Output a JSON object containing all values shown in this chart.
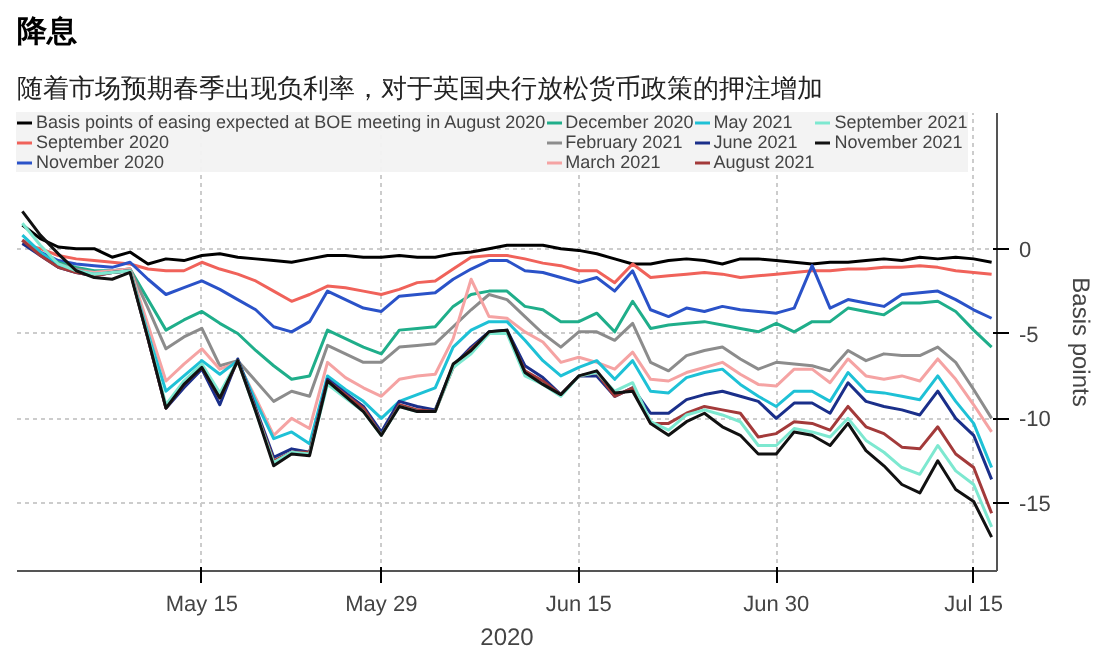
{
  "chart_data": {
    "type": "line",
    "title": "降息",
    "subtitle": "随着市场预期春季出现负利率，对于英国央行放松货币政策的押注增加",
    "xlabel": "2020",
    "ylabel": "Basis points",
    "categories": [
      null,
      null,
      null,
      null,
      null,
      null,
      null,
      null,
      null,
      null,
      "May 15",
      null,
      null,
      null,
      null,
      null,
      null,
      null,
      null,
      null,
      "May 29",
      null,
      null,
      null,
      null,
      null,
      null,
      null,
      null,
      null,
      null,
      "Jun 15",
      null,
      null,
      null,
      null,
      null,
      null,
      null,
      null,
      null,
      null,
      "Jun 30",
      null,
      null,
      null,
      null,
      null,
      null,
      null,
      null,
      null,
      null,
      "Jul 15",
      null
    ],
    "ylim": [
      -19,
      8
    ],
    "yticks": [
      0,
      -5,
      -10,
      -15
    ],
    "grid": true,
    "legend": "top",
    "series": [
      {
        "name": "Basis points of easing expected at BOE meeting in August 2020",
        "color": "#000000",
        "values": [
          1.4,
          0.6,
          0.1,
          0.0,
          0.0,
          -0.5,
          -0.2,
          -0.9,
          -0.6,
          -0.7,
          -0.4,
          -0.3,
          -0.5,
          -0.6,
          -0.7,
          -0.8,
          -0.6,
          -0.4,
          -0.4,
          -0.5,
          -0.5,
          -0.4,
          -0.5,
          -0.5,
          -0.3,
          -0.2,
          0.0,
          0.2,
          0.2,
          0.2,
          0.0,
          -0.1,
          -0.3,
          -0.6,
          -0.9,
          -0.9,
          -0.7,
          -0.6,
          -0.7,
          -0.9,
          -0.6,
          -0.6,
          -0.7,
          -0.8,
          -0.9,
          -0.8,
          -0.8,
          -0.7,
          -0.6,
          -0.7,
          -0.5,
          -0.6,
          -0.5,
          -0.6,
          -0.8
        ]
      },
      {
        "name": "September 2020",
        "color": "#f0625a",
        "values": [
          0.3,
          0.0,
          -0.4,
          -0.6,
          -0.7,
          -0.8,
          -0.9,
          -1.2,
          -1.3,
          -1.3,
          -0.8,
          -1.2,
          -1.5,
          -1.9,
          -2.5,
          -3.1,
          -2.7,
          -2.2,
          -2.3,
          -2.5,
          -2.7,
          -2.4,
          -2.0,
          -1.9,
          -1.2,
          -0.5,
          -0.4,
          -0.4,
          -0.6,
          -0.85,
          -1.0,
          -1.3,
          -1.3,
          -2.0,
          -0.9,
          -1.7,
          -1.6,
          -1.5,
          -1.4,
          -1.5,
          -1.7,
          -1.6,
          -1.5,
          -1.4,
          -1.3,
          -1.3,
          -1.2,
          -1.2,
          -1.1,
          -1.1,
          -1.0,
          -1.1,
          -1.3,
          -1.4,
          -1.5
        ]
      },
      {
        "name": "November 2020",
        "color": "#2a52c8",
        "values": [
          0.5,
          -0.2,
          -0.7,
          -0.9,
          -1.0,
          -1.1,
          -0.8,
          -1.8,
          -2.7,
          -2.3,
          -1.9,
          -2.4,
          -3.0,
          -3.6,
          -4.6,
          -4.9,
          -4.3,
          -2.5,
          -3.0,
          -3.5,
          -3.7,
          -2.8,
          -2.7,
          -2.6,
          -1.8,
          -1.2,
          -0.7,
          -0.7,
          -1.3,
          -1.4,
          -1.7,
          -2.0,
          -1.7,
          -2.5,
          -1.3,
          -3.6,
          -4.0,
          -3.5,
          -3.7,
          -3.4,
          -3.6,
          -3.7,
          -3.8,
          -3.5,
          -1.0,
          -3.5,
          -3.0,
          -3.2,
          -3.4,
          -2.7,
          -2.6,
          -2.5,
          -3.0,
          -3.6,
          -4.1
        ]
      },
      {
        "name": "December 2020",
        "color": "#1fae8a",
        "values": [
          0.5,
          -0.3,
          -0.8,
          -1.1,
          -1.3,
          -1.3,
          -1.2,
          -3.0,
          -4.8,
          -4.2,
          -3.7,
          -4.4,
          -5.0,
          -6.0,
          -6.9,
          -7.7,
          -7.5,
          -4.8,
          -5.3,
          -5.8,
          -6.2,
          -4.8,
          -4.7,
          -4.6,
          -3.4,
          -2.7,
          -2.5,
          -2.5,
          -3.4,
          -3.6,
          -4.3,
          -4.3,
          -3.8,
          -4.9,
          -3.1,
          -4.7,
          -4.5,
          -4.4,
          -4.3,
          -4.5,
          -4.7,
          -4.9,
          -4.4,
          -4.9,
          -4.3,
          -4.3,
          -3.5,
          -3.7,
          -3.9,
          -3.2,
          -3.2,
          -3.1,
          -3.7,
          -4.8,
          -5.8
        ]
      },
      {
        "name": "February 2021",
        "color": "#8c8c8c",
        "values": [
          0.5,
          -0.3,
          -0.9,
          -1.2,
          -1.4,
          -1.3,
          -1.2,
          -3.5,
          -5.9,
          -5.2,
          -4.7,
          -6.9,
          -6.6,
          -7.8,
          -9.0,
          -8.4,
          -8.7,
          -5.7,
          -6.2,
          -6.7,
          -6.7,
          -5.8,
          -5.7,
          -5.6,
          -4.6,
          -3.6,
          -2.7,
          -3.0,
          -4.0,
          -5.0,
          -5.8,
          -4.9,
          -4.9,
          -5.4,
          -4.4,
          -6.7,
          -7.2,
          -6.3,
          -6.0,
          -5.8,
          -6.5,
          -7.1,
          -6.7,
          -6.8,
          -6.9,
          -7.2,
          -6.0,
          -6.6,
          -6.2,
          -6.3,
          -6.3,
          -5.8,
          -6.7,
          -8.3,
          -10.0
        ]
      },
      {
        "name": "March 2021",
        "color": "#f5a3a3",
        "values": [
          0.5,
          -0.3,
          -1.0,
          -1.3,
          -1.4,
          -1.3,
          -1.2,
          -4.5,
          -7.8,
          -6.8,
          -5.9,
          -7.1,
          -6.7,
          -8.8,
          -11.0,
          -10.0,
          -10.6,
          -6.7,
          -7.6,
          -8.2,
          -8.7,
          -7.7,
          -7.5,
          -7.4,
          -5.3,
          -1.8,
          -4.0,
          -4.1,
          -4.9,
          -5.5,
          -6.7,
          -6.4,
          -6.7,
          -7.1,
          -6.1,
          -7.7,
          -7.8,
          -7.3,
          -7.0,
          -6.7,
          -7.4,
          -8.0,
          -8.1,
          -7.1,
          -7.1,
          -7.9,
          -6.5,
          -7.5,
          -7.7,
          -7.5,
          -7.8,
          -6.5,
          -7.7,
          -9.2,
          -10.8
        ]
      },
      {
        "name": "May 2021",
        "color": "#1ec1d6",
        "values": [
          0.8,
          -0.2,
          -1.0,
          -1.3,
          -1.5,
          -1.4,
          -1.3,
          -5.0,
          -8.4,
          -7.5,
          -6.6,
          -7.4,
          -6.6,
          -9.0,
          -11.2,
          -10.8,
          -11.5,
          -7.5,
          -8.3,
          -9.0,
          -10.0,
          -9.0,
          -8.6,
          -8.2,
          -5.8,
          -4.8,
          -4.3,
          -4.3,
          -5.4,
          -6.6,
          -7.5,
          -7.0,
          -6.6,
          -7.7,
          -6.6,
          -8.4,
          -8.5,
          -7.6,
          -7.3,
          -7.1,
          -8.0,
          -8.7,
          -9.3,
          -8.4,
          -8.4,
          -9.0,
          -7.3,
          -8.4,
          -8.5,
          -8.7,
          -8.9,
          -7.5,
          -9.0,
          -10.3,
          -12.9
        ]
      },
      {
        "name": "June 2021",
        "color": "#1a2f8a",
        "values": [
          0.3,
          -0.4,
          -1.1,
          -1.4,
          -1.6,
          -1.4,
          -1.3,
          -5.3,
          -9.4,
          -8.2,
          -7.1,
          -9.2,
          -6.5,
          -9.4,
          -12.3,
          -11.8,
          -12.0,
          -7.7,
          -8.5,
          -9.3,
          -10.8,
          -9.0,
          -9.3,
          -9.5,
          -6.9,
          -5.8,
          -4.9,
          -4.8,
          -6.9,
          -7.6,
          -8.6,
          -7.5,
          -7.5,
          -8.7,
          -8.2,
          -9.7,
          -9.7,
          -8.9,
          -8.6,
          -8.4,
          -8.7,
          -9.0,
          -10.0,
          -9.1,
          -9.1,
          -9.7,
          -7.9,
          -9.0,
          -9.3,
          -9.5,
          -9.8,
          -8.4,
          -10.0,
          -11.0,
          -13.6
        ]
      },
      {
        "name": "August 2021",
        "color": "#a33a3a",
        "values": [
          0.5,
          -0.4,
          -1.1,
          -1.4,
          -1.6,
          -1.4,
          -1.3,
          -5.3,
          -9.4,
          -8.0,
          -7.0,
          -8.8,
          -6.6,
          -9.5,
          -12.5,
          -12.0,
          -12.0,
          -7.8,
          -8.6,
          -9.4,
          -11.0,
          -9.2,
          -9.5,
          -9.6,
          -7.0,
          -5.9,
          -5.0,
          -4.9,
          -7.2,
          -7.8,
          -8.6,
          -7.5,
          -7.3,
          -8.7,
          -8.2,
          -10.3,
          -10.3,
          -9.7,
          -9.3,
          -9.5,
          -9.7,
          -11.1,
          -10.9,
          -10.2,
          -10.3,
          -10.7,
          -9.3,
          -10.5,
          -10.9,
          -11.7,
          -11.8,
          -10.5,
          -12.1,
          -12.9,
          -15.6
        ]
      },
      {
        "name": "September 2021",
        "color": "#7de8d0",
        "values": [
          1.5,
          0.2,
          -0.9,
          -1.3,
          -1.5,
          -1.4,
          -1.3,
          -5.2,
          -9.2,
          -7.8,
          -6.8,
          -8.5,
          -6.6,
          -9.6,
          -12.6,
          -12.0,
          -12.1,
          -8.0,
          -8.8,
          -9.6,
          -11.0,
          -9.3,
          -9.6,
          -9.6,
          -7.0,
          -6.2,
          -5.0,
          -5.0,
          -7.5,
          -8.0,
          -8.7,
          -7.5,
          -7.3,
          -8.4,
          -7.9,
          -10.2,
          -10.7,
          -9.8,
          -9.5,
          -9.8,
          -10.2,
          -11.6,
          -11.6,
          -10.6,
          -10.8,
          -11.1,
          -10.0,
          -11.3,
          -12.0,
          -12.9,
          -13.3,
          -11.6,
          -13.1,
          -13.9,
          -16.4
        ]
      },
      {
        "name": "November 2021",
        "color": "#111111",
        "values": [
          2.2,
          0.8,
          -0.3,
          -1.3,
          -1.7,
          -1.8,
          -1.4,
          -5.3,
          -9.4,
          -8.0,
          -7.0,
          -8.8,
          -6.6,
          -9.6,
          -12.8,
          -12.1,
          -12.2,
          -7.8,
          -8.7,
          -9.6,
          -11.0,
          -9.3,
          -9.6,
          -9.6,
          -6.8,
          -6.0,
          -4.9,
          -4.8,
          -7.3,
          -8.0,
          -8.6,
          -7.5,
          -7.2,
          -8.5,
          -8.4,
          -10.3,
          -11.0,
          -10.2,
          -9.7,
          -10.5,
          -11.0,
          -12.1,
          -12.1,
          -10.8,
          -11.0,
          -11.6,
          -10.3,
          -11.9,
          -12.8,
          -13.9,
          -14.4,
          -12.5,
          -14.2,
          -14.9,
          -17.0
        ]
      }
    ]
  }
}
